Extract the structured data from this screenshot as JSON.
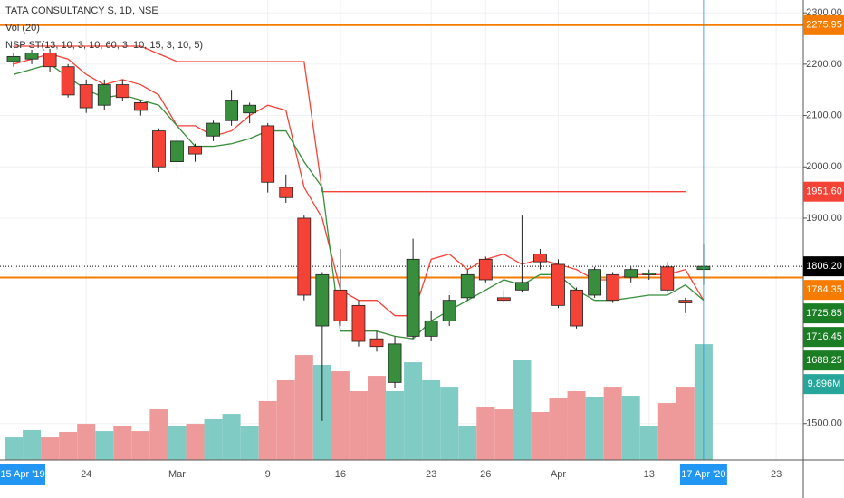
{
  "chart_data": {
    "type": "candlestick",
    "title": "TATA CONSULTANCY S, 1D, NSE",
    "volume_title": "Vol (20)",
    "indicator_title": "NSP ST(13, 10, 3, 10, 60, 3, 10, 15, 3, 10, 5)",
    "categories": [
      null,
      null,
      null,
      null,
      "24",
      null,
      null,
      null,
      null,
      "Mar",
      null,
      null,
      null,
      null,
      "9",
      null,
      null,
      null,
      "16",
      null,
      null,
      null,
      null,
      "23",
      null,
      null,
      "26",
      null,
      null,
      null,
      "Apr",
      null,
      null,
      null,
      null,
      "13",
      null,
      null,
      "17 Apr '20",
      null,
      null,
      null,
      "23"
    ],
    "crosshair_left_label": "15 Apr '19",
    "open": [
      2205,
      2210,
      2222,
      2195,
      2160,
      2120,
      2160,
      2125,
      2070,
      2010,
      2040,
      2060,
      2090,
      2105,
      2080,
      1960,
      1900,
      1690,
      1760,
      1730,
      1665,
      1580,
      1670,
      1670,
      1700,
      1745,
      1820,
      1745,
      1760,
      1830,
      1810,
      1760,
      1750,
      1790,
      1785,
      1790,
      1805,
      1740,
      1800,
      null,
      null,
      null,
      null
    ],
    "high": [
      2222,
      2228,
      2230,
      2200,
      2170,
      2170,
      2170,
      2130,
      2075,
      2060,
      2045,
      2090,
      2150,
      2125,
      2085,
      1985,
      1905,
      1795,
      1840,
      1740,
      1680,
      1670,
      1860,
      1720,
      1750,
      1800,
      1825,
      1760,
      1905,
      1840,
      1820,
      1765,
      1805,
      1795,
      1805,
      1800,
      1815,
      1745,
      1850,
      null,
      null,
      null,
      null
    ],
    "low": [
      2195,
      2200,
      2185,
      2135,
      2105,
      2110,
      2128,
      2100,
      1990,
      1995,
      2010,
      2050,
      2080,
      2085,
      1950,
      1930,
      1740,
      1505,
      1690,
      1650,
      1640,
      1570,
      1665,
      1660,
      1690,
      1740,
      1775,
      1735,
      1755,
      1800,
      1725,
      1685,
      1745,
      1735,
      1775,
      1780,
      1755,
      1715,
      1770,
      null,
      null,
      null,
      null
    ],
    "close": [
      2215,
      2222,
      2195,
      2140,
      2115,
      2160,
      2135,
      2110,
      2000,
      2050,
      2025,
      2085,
      2130,
      2120,
      1970,
      1940,
      1750,
      1790,
      1700,
      1660,
      1650,
      1655,
      1820,
      1700,
      1740,
      1790,
      1780,
      1740,
      1775,
      1815,
      1730,
      1690,
      1800,
      1740,
      1800,
      1793,
      1760,
      1735,
      1806.2,
      null,
      null,
      null,
      null
    ],
    "volume": [
      1.93,
      2.55,
      1.93,
      2.4,
      3.09,
      2.47,
      2.94,
      2.47,
      4.33,
      2.94,
      3.09,
      3.48,
      3.94,
      2.94,
      5.03,
      6.81,
      8.97,
      8.12,
      7.58,
      5.88,
      7.19,
      5.88,
      8.35,
      6.81,
      6.26,
      2.94,
      4.49,
      4.33,
      8.51,
      4.1,
      5.26,
      5.88,
      5.41,
      6.26,
      5.49,
      2.94,
      4.87,
      6.26,
      9.896,
      null,
      null,
      null,
      null
    ],
    "volume_lim": [
      0,
      39.3
    ],
    "up_color": "#388e3c",
    "down_color": "#f44336",
    "volume_up_color": "#80cbc4",
    "volume_down_color": "#ef9a9a",
    "lines": [
      {
        "color": "#f44336",
        "values": [
          2235,
          2235,
          2235,
          2235,
          2235,
          2235,
          2235,
          2235,
          2220,
          2205,
          2205,
          2205,
          2205,
          2205,
          2205,
          2205,
          2205,
          1951.6,
          1951.6,
          1951.6,
          1951.6,
          1951.6,
          1951.6,
          1951.6,
          1951.6,
          1951.6,
          1951.6,
          1951.6,
          1951.6,
          1951.6,
          1951.6,
          1951.6,
          1951.6,
          1951.6,
          1951.6,
          1951.6,
          1951.6,
          1951.6,
          null,
          null,
          null,
          null,
          null
        ]
      },
      {
        "color": "#f44336",
        "values": [
          2200,
          2210,
          2220,
          2210,
          2180,
          2160,
          2170,
          2160,
          2140,
          2080,
          2080,
          2060,
          2070,
          2100,
          2120,
          2110,
          1960,
          1900,
          1760,
          1740,
          1740,
          1710,
          1710,
          1820,
          1830,
          1800,
          1820,
          1830,
          1810,
          1820,
          1810,
          1800,
          1780,
          1780,
          1790,
          1790,
          1790,
          1800,
          1740,
          null,
          null,
          null,
          null
        ]
      },
      {
        "color": "#388e3c",
        "values": [
          2180,
          2190,
          2200,
          2175,
          2150,
          2135,
          2140,
          2130,
          2120,
          2080,
          2040,
          2040,
          2045,
          2055,
          2070,
          2070,
          2010,
          1960,
          1680,
          1680,
          1680,
          1670,
          1665,
          1700,
          1720,
          1740,
          1760,
          1780,
          1770,
          1790,
          1790,
          1760,
          1740,
          1740,
          1745,
          1750,
          1750,
          1770,
          1740,
          null,
          null,
          null,
          null
        ]
      }
    ],
    "hlines": [
      {
        "value": 2275.95,
        "color": "#f57c00"
      },
      {
        "value": 1784.35,
        "color": "#f57c00"
      }
    ],
    "last_price_line": 1806.2,
    "ylim": [
      1429,
      2325
    ],
    "yticks": [
      {
        "value": 2300,
        "label": "2300.00"
      },
      {
        "value": 2200,
        "label": "2200.00"
      },
      {
        "value": 2100,
        "label": "2100.00"
      },
      {
        "value": 2000,
        "label": "2000.00"
      },
      {
        "value": 1900,
        "label": "1900.00"
      },
      {
        "value": 1500,
        "label": "1500.00"
      }
    ],
    "grid": true,
    "price_labels": [
      {
        "value": 2275.95,
        "label": "2275.95",
        "color": "#f57c00"
      },
      {
        "value": 1951.6,
        "label": "1951.60",
        "color": "#f44336"
      },
      {
        "value": 1806.2,
        "label": "1806.20",
        "color": "#000000"
      },
      {
        "value": 1784.35,
        "label": "1784.35",
        "color": "#f57c00"
      },
      {
        "value": 1725.85,
        "label": "1725.85",
        "color": "#1b7d24"
      },
      {
        "value": 1716.45,
        "label": "1716.45",
        "color": "#1b7d24"
      },
      {
        "value": 1688.25,
        "label": "1688.25",
        "color": "#1b7d24"
      }
    ],
    "volume_label": {
      "value": 9.896,
      "label": "9.896M",
      "color": "#26a69a"
    },
    "crosshair_color": "#2196f3"
  }
}
